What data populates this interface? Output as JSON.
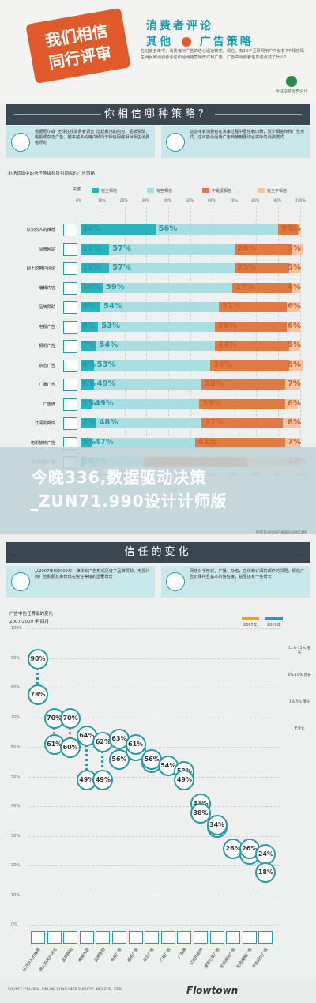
{
  "header": {
    "badge_line1": "我们相信",
    "badge_line2": "同行评审",
    "title_line1": "消费者评论",
    "title_line2a": "其他",
    "title_line2b": "广告策略",
    "description": "在过去五年中，消费者对广告的信心迅速转变。现在，有10个互联网用户中就有7个相信陌生网民和消费者评论和经网络营销形式和广告。广告中消费者信息还改变了什么？",
    "logo_text": "专注信息图表设计"
  },
  "section1": {
    "title": "你相信哪种策略？",
    "panel_left": "根据尼尔森“全球在线消费者调查”比起餐馆的内容、品牌赞助、电视或杂志广告，越来越多的用户倾向于相信网络相对陌生消费者评论",
    "panel_right": "这意味着消费者在决策过程中更信赖口碑，较少相信传统广告形式。这可能会促使广告商使用更切合实际的消费模式"
  },
  "chart_data": [
    {
      "type": "bar",
      "title": "市场营销中的信任等级和针对网民的广告策略",
      "legend_title": "关键",
      "series": [
        {
          "name": "完全相信",
          "color": "#2ab3bf",
          "values": [
            34,
            13,
            13,
            10,
            9,
            8,
            7,
            6,
            6,
            5,
            7,
            5,
            2
          ]
        },
        {
          "name": "有些相信",
          "color": "#a8dde2",
          "values": [
            56,
            57,
            57,
            59,
            54,
            53,
            54,
            53,
            49,
            49,
            48,
            47,
            27
          ]
        },
        {
          "name": "不是很相信",
          "color": "#e07a44",
          "values": [
            9,
            26,
            25,
            27,
            31,
            33,
            34,
            36,
            38,
            39,
            37,
            41,
            47
          ]
        },
        {
          "name": "完全不相信",
          "color": "#f4c3a4",
          "values": [
            1,
            5,
            5,
            4,
            6,
            6,
            5,
            6,
            7,
            6,
            8,
            7,
            24
          ]
        }
      ],
      "categories": [
        "认识的人的推荐",
        "品牌网站",
        "网上的用户评论",
        "编辑内容",
        "品牌赞助",
        "电视广告",
        "报纸广告",
        "杂志广告",
        "广播广告",
        "广告牌",
        "订阅的邮件",
        "电影放映广告",
        "手机短信广告"
      ],
      "axis_ticks": [
        "0%",
        "10%",
        "20%",
        "30%",
        "40%",
        "50%",
        "60%",
        "70%",
        "80%",
        "90%",
        "100%"
      ],
      "xlim": [
        0,
        100
      ]
    },
    {
      "type": "scatter",
      "title": "广告中信任等级的变化",
      "subtitle": "2007-2009 年 四月",
      "categories": [
        "认识的人的推荐",
        "网上的用户评论",
        "品牌网站",
        "编辑内容",
        "品牌赞助",
        "电视广告",
        "报纸广告",
        "杂志广告",
        "广播广告",
        "广告牌",
        "订阅的邮件",
        "搜索引擎广告",
        "在线视频广告",
        "在线横幅广告",
        "手机短信广告"
      ],
      "series": [
        {
          "name": "2007年",
          "values": [
            78,
            61,
            60,
            49,
            49,
            56,
            61,
            56,
            54,
            49,
            38,
            34,
            26,
            26,
            18
          ]
        },
        {
          "name": "2009年",
          "values": [
            90,
            70,
            70,
            64,
            62,
            63,
            59,
            55,
            54,
            52,
            41,
            33,
            26,
            24,
            24
          ]
        }
      ],
      "ylim": [
        0,
        100
      ],
      "y_ticks": [
        "0%",
        "10%",
        "20%",
        "30%",
        "40%",
        "50%",
        "60%",
        "70%",
        "80%",
        "90%",
        "100%"
      ],
      "legend_right": [
        "11%-15% 增长",
        "6%-10% 增长",
        "1%-5% 增长",
        "无变化"
      ]
    }
  ],
  "c1_row_labels": [
    "认识的人的推荐",
    "品牌网站",
    "网上的用户评论",
    "编辑内容",
    "品牌赞助",
    "电视广告",
    "报纸广告",
    "杂志广告",
    "广播广告",
    "广告牌",
    "订阅的邮件",
    "电影放映广告",
    "手机短信广告"
  ],
  "banner": {
    "line1": "今晚336,数据驱动决策",
    "line2": "_ZUN71.990设计计师版"
  },
  "source1": "所有百分比均已按照2009年4月",
  "section2": {
    "title": "信任的变化",
    "panel_left": "从2007年到2009年，媒体和广告形式见证了品牌赞助、电视片商广告和朋友推荐现在信任等级的显著增长",
    "panel_right": "网络对手形式，广播，杂志，在线和订阅的邮件的邻居，短信广告仍保持且基本的信任度，甚至还有一些增长"
  },
  "c2_legend_top": [
    "2007年",
    "2009年"
  ],
  "footer": {
    "source": "SOURCE: \"GLOBAL ONLINE CONSUMER SURVEY\", NIELSEN, 2009",
    "brand": "Flowtown"
  }
}
